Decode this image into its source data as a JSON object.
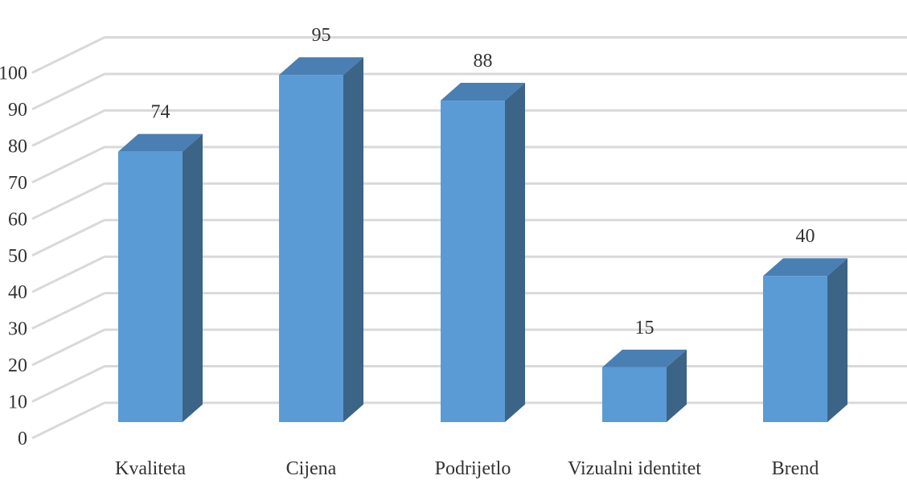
{
  "chart_data": {
    "type": "bar",
    "categories": [
      "Kvaliteta",
      "Cijena",
      "Podrijetlo",
      "Vizualni identitet",
      "Brend"
    ],
    "values": [
      74,
      95,
      88,
      15,
      40
    ],
    "data_labels": [
      "74",
      "95",
      "88",
      "15",
      "40"
    ],
    "yticks": [
      "0",
      "10",
      "20",
      "30",
      "40",
      "50",
      "60",
      "70",
      "80",
      "90",
      "100"
    ],
    "ylim": [
      0,
      100
    ],
    "grid": true,
    "style": "3d-column",
    "colors": {
      "front": "#5b9bd5",
      "top": "#4a7fb3",
      "side": "#3b6487",
      "grid": "#d9d9d9"
    }
  }
}
